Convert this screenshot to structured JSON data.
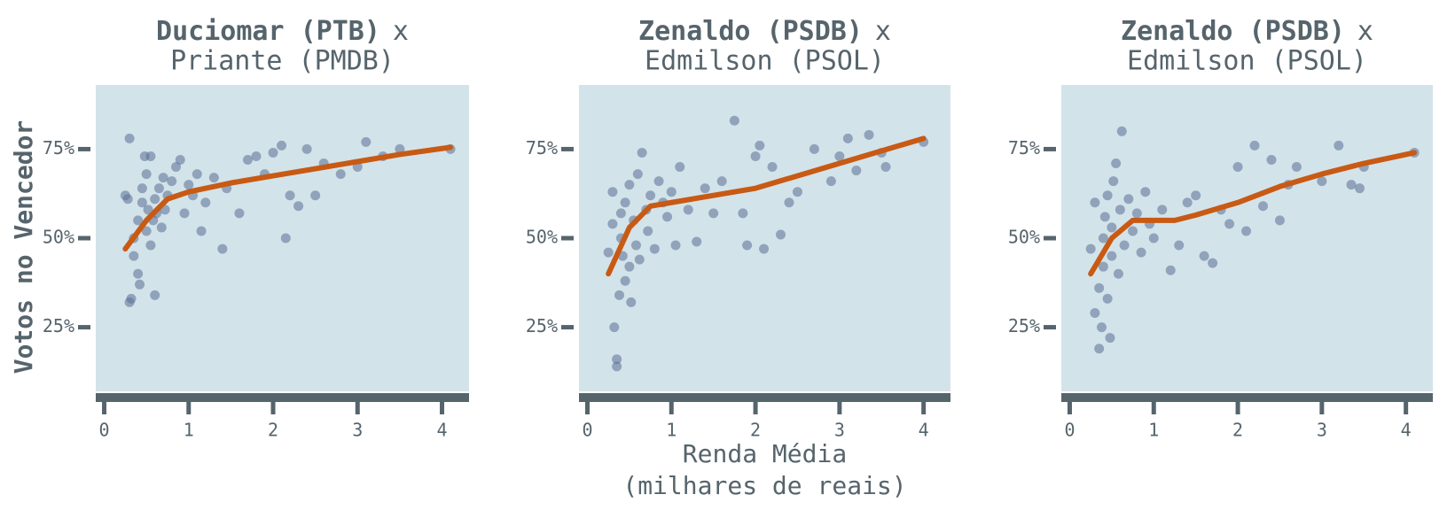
{
  "chart_data": [
    {
      "type": "scatter",
      "title": [
        "Duciomar (PTB)",
        "x",
        "Priante (PMDB)"
      ],
      "ylabel": "Votos no Vencedor",
      "xlim": [
        -0.1,
        4.32
      ],
      "ylim": [
        7,
        93
      ],
      "xticks": [
        0,
        1,
        2,
        3,
        4
      ],
      "yticks": [
        {
          "value": 25,
          "label": "25%"
        },
        {
          "value": 50,
          "label": "50%"
        },
        {
          "value": 75,
          "label": "75%"
        }
      ],
      "color": "#5a6f94",
      "x": [
        0.3,
        0.3,
        0.32,
        0.25,
        0.28,
        0.35,
        0.35,
        0.4,
        0.4,
        0.42,
        0.45,
        0.45,
        0.48,
        0.5,
        0.5,
        0.52,
        0.55,
        0.55,
        0.58,
        0.6,
        0.6,
        0.62,
        0.65,
        0.68,
        0.7,
        0.72,
        0.75,
        0.8,
        0.85,
        0.9,
        0.95,
        1.0,
        1.05,
        1.1,
        1.15,
        1.2,
        1.3,
        1.4,
        1.45,
        1.6,
        1.7,
        1.8,
        1.9,
        2.0,
        2.1,
        2.15,
        2.2,
        2.3,
        2.4,
        2.5,
        2.6,
        2.8,
        3.0,
        3.1,
        3.3,
        3.5,
        4.1
      ],
      "values": [
        78,
        32,
        33,
        62,
        61,
        50,
        45,
        55,
        40,
        37,
        60,
        64,
        73,
        52,
        68,
        58,
        48,
        73,
        55,
        61,
        34,
        57,
        64,
        53,
        67,
        58,
        62,
        66,
        70,
        72,
        57,
        65,
        62,
        68,
        52,
        60,
        67,
        47,
        64,
        57,
        72,
        73,
        68,
        74,
        76,
        50,
        62,
        59,
        75,
        62,
        71,
        68,
        70,
        77,
        73,
        75,
        75
      ],
      "trend": {
        "color": "#c85a14",
        "x": [
          0.25,
          0.5,
          0.75,
          1,
          1.5,
          2,
          2.5,
          3,
          3.5,
          4.1
        ],
        "values": [
          47,
          55,
          61,
          63,
          65.5,
          67.5,
          69.5,
          71.5,
          73.5,
          75.5
        ]
      }
    },
    {
      "type": "scatter",
      "title": [
        "Zenaldo (PSDB)",
        "x",
        "Edmilson (PSOL)"
      ],
      "xlabel": [
        "Renda Média",
        "(milhares de reais)"
      ],
      "xlim": [
        -0.1,
        4.32
      ],
      "ylim": [
        7,
        93
      ],
      "xticks": [
        0,
        1,
        2,
        3,
        4
      ],
      "yticks": [
        {
          "value": 25,
          "label": "25%"
        },
        {
          "value": 50,
          "label": "50%"
        },
        {
          "value": 75,
          "label": "75%"
        }
      ],
      "color": "#5a6f94",
      "x": [
        0.25,
        0.3,
        0.3,
        0.32,
        0.35,
        0.35,
        0.38,
        0.4,
        0.4,
        0.42,
        0.45,
        0.45,
        0.5,
        0.5,
        0.52,
        0.55,
        0.58,
        0.6,
        0.62,
        0.65,
        0.7,
        0.72,
        0.75,
        0.8,
        0.85,
        0.9,
        0.95,
        1.0,
        1.05,
        1.1,
        1.2,
        1.3,
        1.4,
        1.5,
        1.6,
        1.75,
        1.85,
        1.9,
        2.0,
        2.05,
        2.1,
        2.2,
        2.3,
        2.4,
        2.5,
        2.7,
        2.9,
        3.0,
        3.1,
        3.2,
        3.35,
        3.5,
        3.55,
        4.0
      ],
      "values": [
        46,
        54,
        63,
        25,
        16,
        14,
        34,
        50,
        57,
        45,
        60,
        38,
        42,
        65,
        32,
        55,
        48,
        68,
        44,
        74,
        58,
        52,
        62,
        47,
        66,
        60,
        56,
        63,
        48,
        70,
        58,
        49,
        64,
        57,
        66,
        83,
        57,
        48,
        73,
        76,
        47,
        70,
        51,
        60,
        63,
        75,
        66,
        73,
        78,
        69,
        79,
        74,
        70,
        77
      ],
      "trend": {
        "color": "#c85a14",
        "x": [
          0.25,
          0.5,
          0.75,
          1,
          1.5,
          2,
          2.5,
          3,
          3.5,
          4
        ],
        "values": [
          40,
          53,
          59,
          60,
          62,
          64,
          67.5,
          71,
          74.5,
          78
        ]
      }
    },
    {
      "type": "scatter",
      "title": [
        "Zenaldo (PSDB)",
        "x",
        "Edmilson (PSOL)"
      ],
      "xlim": [
        -0.1,
        4.32
      ],
      "ylim": [
        7,
        93
      ],
      "xticks": [
        0,
        1,
        2,
        3,
        4
      ],
      "yticks": [
        {
          "value": 25,
          "label": "25%"
        },
        {
          "value": 50,
          "label": "50%"
        },
        {
          "value": 75,
          "label": "75%"
        }
      ],
      "color": "#5a6f94",
      "x": [
        0.25,
        0.3,
        0.3,
        0.35,
        0.35,
        0.38,
        0.4,
        0.4,
        0.42,
        0.45,
        0.45,
        0.48,
        0.5,
        0.5,
        0.52,
        0.55,
        0.58,
        0.6,
        0.62,
        0.65,
        0.7,
        0.75,
        0.8,
        0.85,
        0.9,
        0.95,
        1.0,
        1.1,
        1.2,
        1.3,
        1.4,
        1.5,
        1.6,
        1.7,
        1.8,
        1.9,
        2.0,
        2.1,
        2.2,
        2.3,
        2.4,
        2.5,
        2.6,
        2.7,
        3.0,
        3.2,
        3.35,
        3.45,
        3.5,
        4.1
      ],
      "values": [
        47,
        60,
        29,
        19,
        36,
        25,
        50,
        42,
        56,
        62,
        33,
        22,
        53,
        45,
        66,
        71,
        40,
        58,
        80,
        48,
        61,
        52,
        57,
        46,
        63,
        54,
        50,
        58,
        41,
        48,
        60,
        62,
        45,
        43,
        58,
        54,
        70,
        52,
        76,
        59,
        72,
        55,
        65,
        70,
        66,
        76,
        65,
        64,
        70,
        74
      ],
      "trend": {
        "color": "#c85a14",
        "x": [
          0.25,
          0.5,
          0.75,
          1,
          1.25,
          1.5,
          2,
          2.5,
          3,
          3.5,
          4.1
        ],
        "values": [
          40,
          50,
          55,
          55,
          55,
          56.5,
          60,
          64.5,
          68,
          71,
          74
        ]
      }
    }
  ]
}
